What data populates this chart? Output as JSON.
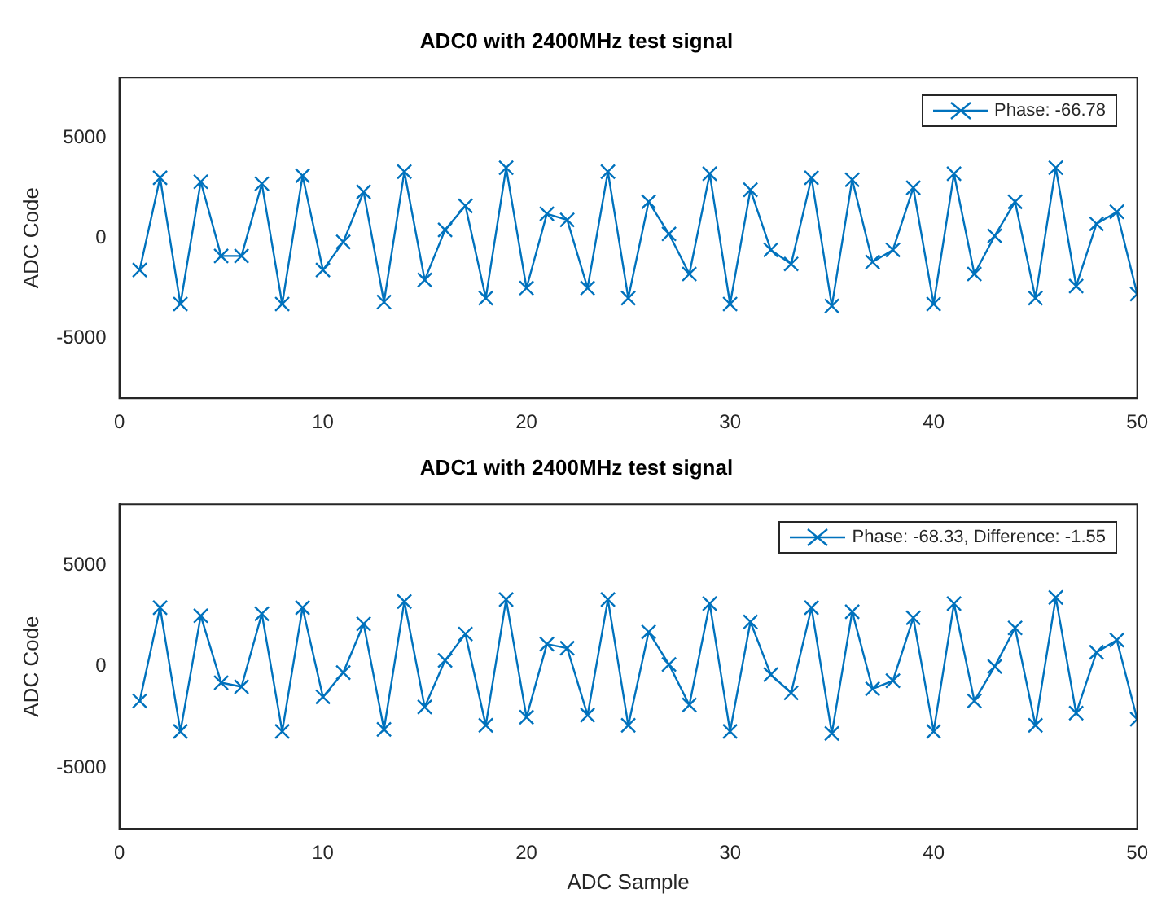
{
  "chart_data": [
    {
      "type": "line",
      "title": "ADC0 with 2400MHz test signal",
      "ylabel": "ADC Code",
      "x": [
        1,
        2,
        3,
        4,
        5,
        6,
        7,
        8,
        9,
        10,
        11,
        12,
        13,
        14,
        15,
        16,
        17,
        18,
        19,
        20,
        21,
        22,
        23,
        24,
        25,
        26,
        27,
        28,
        29,
        30,
        31,
        32,
        33,
        34,
        35,
        36,
        37,
        38,
        39,
        40,
        41,
        42,
        43,
        44,
        45,
        46,
        47,
        48,
        49,
        50
      ],
      "series": [
        {
          "name": "Phase: -66.78",
          "color": "#0072bd",
          "values": [
            -1600,
            3000,
            -3300,
            2800,
            -900,
            -900,
            2700,
            -3300,
            3100,
            -1600,
            -200,
            2300,
            -3200,
            3300,
            -2100,
            400,
            1600,
            -3000,
            3500,
            -2500,
            1200,
            900,
            -2500,
            3300,
            -3000,
            1800,
            200,
            -1800,
            3200,
            -3300,
            2400,
            -600,
            -1300,
            3000,
            -3400,
            2900,
            -1200,
            -600,
            2500,
            -3300,
            3200,
            -1800,
            100,
            1800,
            -3000,
            3500,
            -2400,
            700,
            1300,
            -2800
          ]
        }
      ],
      "xlim": [
        0,
        50
      ],
      "xticks": [
        0,
        10,
        20,
        30,
        40,
        50
      ],
      "ylim": [
        -8000,
        8000
      ],
      "yticks": [
        -5000,
        0,
        5000
      ],
      "legend": "top right",
      "marker": "cross",
      "grid": false
    },
    {
      "type": "line",
      "title": "ADC1 with 2400MHz test signal",
      "xlabel": "ADC Sample",
      "ylabel": "ADC Code",
      "x": [
        1,
        2,
        3,
        4,
        5,
        6,
        7,
        8,
        9,
        10,
        11,
        12,
        13,
        14,
        15,
        16,
        17,
        18,
        19,
        20,
        21,
        22,
        23,
        24,
        25,
        26,
        27,
        28,
        29,
        30,
        31,
        32,
        33,
        34,
        35,
        36,
        37,
        38,
        39,
        40,
        41,
        42,
        43,
        44,
        45,
        46,
        47,
        48,
        49,
        50
      ],
      "series": [
        {
          "name": "Phase: -68.33, Difference: -1.55",
          "color": "#0072bd",
          "values": [
            -1700,
            2900,
            -3200,
            2500,
            -800,
            -1000,
            2600,
            -3200,
            2900,
            -1500,
            -300,
            2100,
            -3100,
            3200,
            -2000,
            300,
            1600,
            -2900,
            3300,
            -2500,
            1100,
            900,
            -2400,
            3300,
            -2900,
            1700,
            100,
            -1900,
            3100,
            -3200,
            2200,
            -400,
            -1300,
            2900,
            -3300,
            2700,
            -1100,
            -700,
            2400,
            -3200,
            3100,
            -1700,
            0,
            1900,
            -2900,
            3400,
            -2300,
            700,
            1300,
            -2600
          ]
        }
      ],
      "xlim": [
        0,
        50
      ],
      "xticks": [
        0,
        10,
        20,
        30,
        40,
        50
      ],
      "ylim": [
        -8000,
        8000
      ],
      "yticks": [
        -5000,
        0,
        5000
      ],
      "legend": "top right",
      "marker": "cross",
      "grid": false
    }
  ]
}
